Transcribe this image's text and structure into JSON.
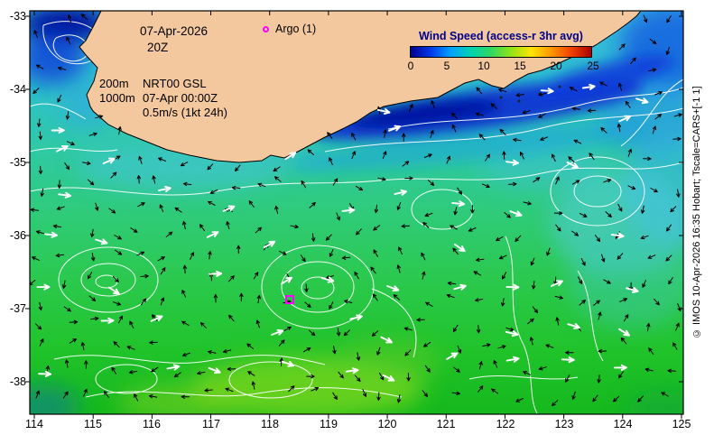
{
  "header": {
    "date": "07-Apr-2026",
    "time": "20Z"
  },
  "argo": {
    "legend_label": "Argo (1)",
    "color": "#ff00ff"
  },
  "layers": {
    "depth1": "200m",
    "model": "NRT00 GSL",
    "depth2": "1000m",
    "valid_time": "07-Apr 00:00Z",
    "vector_scale": "0.5m/s (1kt 24h)"
  },
  "colorbar": {
    "title": "Wind Speed (access-r 3hr avg)",
    "title_color": "#00008b",
    "ticks": [
      "0",
      "5",
      "10",
      "15",
      "20",
      "25"
    ],
    "gradient": [
      "#000090",
      "#0038e8",
      "#00a2ff",
      "#00d2b0",
      "#30d860",
      "#90e418",
      "#ffe400",
      "#ff9800",
      "#f04000",
      "#aa0000"
    ]
  },
  "axes": {
    "x_ticks": [
      "114",
      "115",
      "116",
      "117",
      "118",
      "119",
      "120",
      "121",
      "122",
      "123",
      "124",
      "125"
    ],
    "y_ticks": [
      "-33",
      "-34",
      "-35",
      "-36",
      "-37",
      "-38"
    ]
  },
  "footer": {
    "copyright": "© IMOS 10-Apr-2026 16:35 Hobart; Tscale=CARS+[-1 1]"
  },
  "map_colors": {
    "land": "#f3c89e",
    "contour": "#ffffff",
    "ocean_deep_blue": "#0020c0",
    "ocean_teal": "#30c8b0",
    "ocean_green": "#20c020"
  }
}
